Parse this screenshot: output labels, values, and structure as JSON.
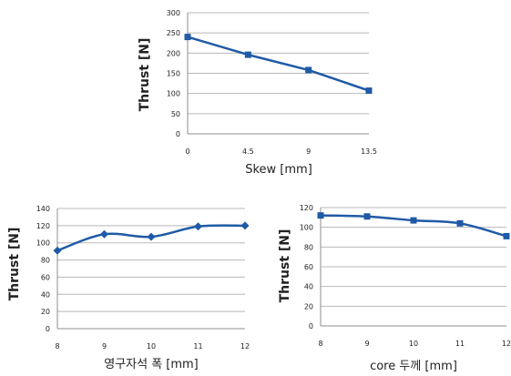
{
  "colors": {
    "series": "#1f5aa6",
    "grid": "#b8b8b8",
    "axis": "#8c8c8c",
    "text": "#222222"
  },
  "chart_data": [
    {
      "type": "line",
      "xlabel": "Skew [mm]",
      "ylabel": "Thrust [N]",
      "x": [
        "0",
        "4.5",
        "9",
        "13.5"
      ],
      "values": [
        240,
        196,
        158,
        107
      ],
      "yticks": [
        "0",
        "50",
        "100",
        "150",
        "200",
        "250",
        "300"
      ],
      "ylim": [
        0,
        300
      ],
      "grid": true,
      "marker": "square",
      "smooth": false
    },
    {
      "type": "line",
      "xlabel": "영구자석 폭 [mm]",
      "ylabel": "Thrust [N]",
      "x": [
        "8",
        "9",
        "10",
        "11",
        "12"
      ],
      "values": [
        91,
        110,
        107,
        119,
        120
      ],
      "yticks": [
        "0",
        "20",
        "40",
        "60",
        "80",
        "100",
        "120",
        "140"
      ],
      "ylim": [
        0,
        140
      ],
      "grid": true,
      "marker": "diamond",
      "smooth": true
    },
    {
      "type": "line",
      "xlabel": "core 두께 [mm]",
      "ylabel": "Thrust [N]",
      "x": [
        "8",
        "9",
        "10",
        "11",
        "12"
      ],
      "values": [
        112,
        111,
        107,
        104,
        91
      ],
      "yticks": [
        "0",
        "20",
        "40",
        "60",
        "80",
        "100",
        "120"
      ],
      "ylim": [
        0,
        120
      ],
      "grid": true,
      "marker": "square",
      "smooth": true
    }
  ]
}
